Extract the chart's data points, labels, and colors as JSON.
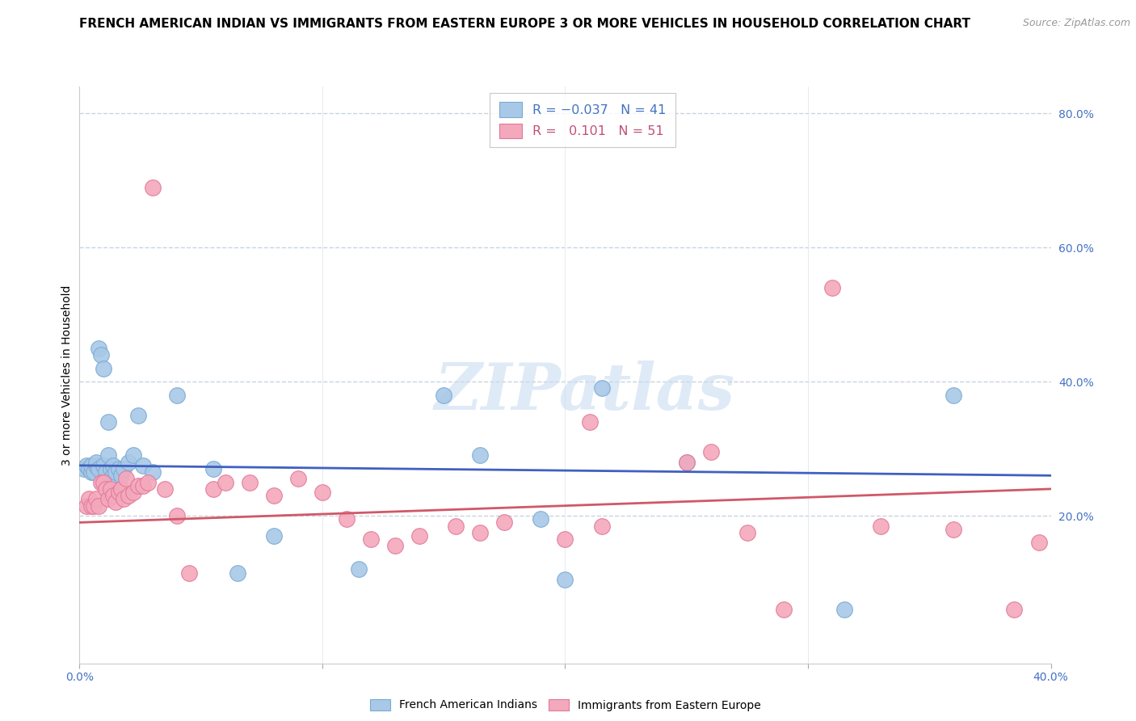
{
  "title": "FRENCH AMERICAN INDIAN VS IMMIGRANTS FROM EASTERN EUROPE 3 OR MORE VEHICLES IN HOUSEHOLD CORRELATION CHART",
  "source": "Source: ZipAtlas.com",
  "ylabel": "3 or more Vehicles in Household",
  "right_ytick_vals": [
    0.2,
    0.4,
    0.6,
    0.8
  ],
  "right_ytick_labels": [
    "20.0%",
    "40.0%",
    "60.0%",
    "80.0%"
  ],
  "xlim": [
    0.0,
    0.4
  ],
  "ylim": [
    -0.02,
    0.84
  ],
  "series1_name": "French American Indians",
  "series2_name": "Immigrants from Eastern Europe",
  "series1_color": "#A8C8E8",
  "series2_color": "#F4A8BC",
  "series1_edge_color": "#7AAAD0",
  "series2_edge_color": "#E07898",
  "trendline1_color": "#4060C0",
  "trendline2_color": "#D05868",
  "series1_x": [
    0.002,
    0.003,
    0.004,
    0.005,
    0.005,
    0.006,
    0.007,
    0.007,
    0.008,
    0.008,
    0.009,
    0.01,
    0.01,
    0.011,
    0.012,
    0.012,
    0.013,
    0.014,
    0.014,
    0.015,
    0.016,
    0.017,
    0.018,
    0.02,
    0.022,
    0.024,
    0.026,
    0.03,
    0.04,
    0.055,
    0.065,
    0.08,
    0.115,
    0.15,
    0.165,
    0.19,
    0.2,
    0.215,
    0.25,
    0.315,
    0.36
  ],
  "series1_y": [
    0.27,
    0.275,
    0.27,
    0.265,
    0.275,
    0.265,
    0.275,
    0.28,
    0.27,
    0.45,
    0.44,
    0.42,
    0.275,
    0.265,
    0.34,
    0.29,
    0.27,
    0.26,
    0.275,
    0.265,
    0.27,
    0.26,
    0.27,
    0.28,
    0.29,
    0.35,
    0.275,
    0.265,
    0.38,
    0.27,
    0.115,
    0.17,
    0.12,
    0.38,
    0.29,
    0.195,
    0.105,
    0.39,
    0.28,
    0.06,
    0.38
  ],
  "series2_x": [
    0.003,
    0.004,
    0.005,
    0.006,
    0.007,
    0.008,
    0.009,
    0.01,
    0.011,
    0.012,
    0.013,
    0.014,
    0.015,
    0.016,
    0.017,
    0.018,
    0.019,
    0.02,
    0.022,
    0.024,
    0.026,
    0.028,
    0.03,
    0.035,
    0.04,
    0.045,
    0.055,
    0.06,
    0.07,
    0.08,
    0.09,
    0.1,
    0.11,
    0.12,
    0.13,
    0.14,
    0.155,
    0.165,
    0.175,
    0.2,
    0.21,
    0.215,
    0.25,
    0.26,
    0.275,
    0.29,
    0.31,
    0.33,
    0.36,
    0.385,
    0.395
  ],
  "series2_y": [
    0.215,
    0.225,
    0.215,
    0.215,
    0.225,
    0.215,
    0.25,
    0.25,
    0.24,
    0.225,
    0.24,
    0.23,
    0.22,
    0.235,
    0.24,
    0.225,
    0.255,
    0.23,
    0.235,
    0.245,
    0.245,
    0.25,
    0.69,
    0.24,
    0.2,
    0.115,
    0.24,
    0.25,
    0.25,
    0.23,
    0.255,
    0.235,
    0.195,
    0.165,
    0.155,
    0.17,
    0.185,
    0.175,
    0.19,
    0.165,
    0.34,
    0.185,
    0.28,
    0.295,
    0.175,
    0.06,
    0.54,
    0.185,
    0.18,
    0.06,
    0.16
  ],
  "trendline1_x": [
    0.0,
    0.4
  ],
  "trendline1_y": [
    0.275,
    0.26
  ],
  "trendline2_x": [
    0.0,
    0.4
  ],
  "trendline2_y": [
    0.19,
    0.24
  ],
  "watermark": "ZIPatlas",
  "background_color": "#FFFFFF",
  "grid_color": "#C8D4E0",
  "title_fontsize": 11,
  "source_fontsize": 9,
  "axis_label_fontsize": 10,
  "tick_fontsize": 10,
  "legend_fontsize": 11.5
}
